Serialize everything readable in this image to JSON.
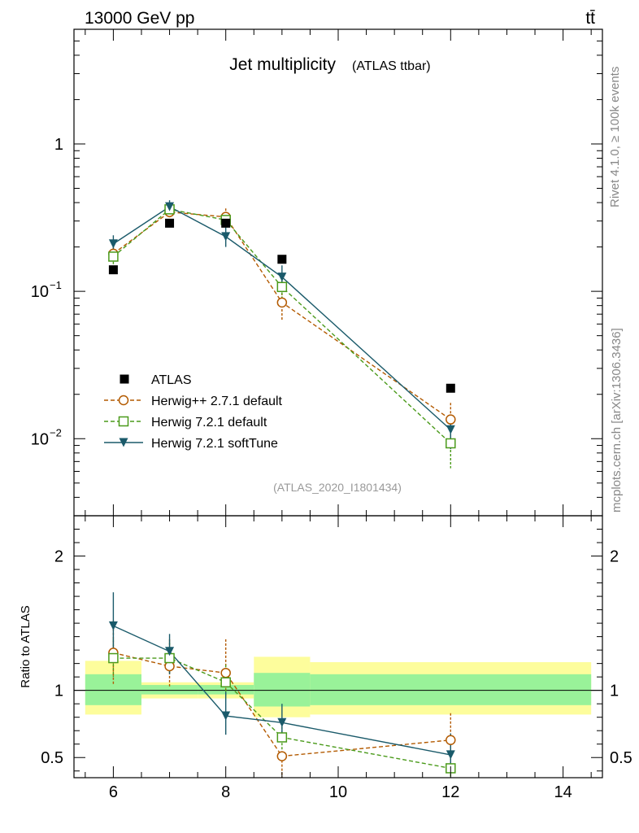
{
  "header": {
    "left": "13000 GeV pp",
    "right": "tt̄"
  },
  "side": {
    "rivet": "Rivet 4.1.0, ≥ 100k events",
    "url": "mcplots.cern.ch [arXiv:1306.3436]"
  },
  "chart_data": [
    {
      "type": "line",
      "panel": "main",
      "title": "Jet multiplicity",
      "subtitle": "(ATLAS ttbar)",
      "annotation": "(ATLAS_2020_I1801434)",
      "yscale": "log",
      "xlim": [
        5.3,
        14.7
      ],
      "ylim": [
        0.003,
        6.0
      ],
      "yticks": [
        {
          "value": 1,
          "label": "1"
        },
        {
          "value": 0.1,
          "label": "10",
          "exp": "−1"
        },
        {
          "value": 0.01,
          "label": "10",
          "exp": "−2"
        }
      ],
      "legend_position": "bottom-left",
      "series": [
        {
          "name": "ATLAS",
          "style": "data",
          "color": "#000000",
          "marker": "square-filled",
          "x": [
            6,
            7,
            8,
            9,
            12
          ],
          "y": [
            0.14,
            0.29,
            0.29,
            0.165,
            0.022
          ]
        },
        {
          "name": "Herwig++ 2.7.1 default",
          "style": "dashed",
          "color": "#b35a00",
          "marker": "circle-open",
          "x": [
            6,
            7,
            8,
            9,
            12
          ],
          "y": [
            0.18,
            0.345,
            0.32,
            0.084,
            0.0135
          ],
          "err": [
            0.02,
            0.03,
            0.045,
            0.02,
            0.004
          ]
        },
        {
          "name": "Herwig 7.2.1 default",
          "style": "dashed",
          "color": "#4a9a1a",
          "marker": "square-open",
          "x": [
            6,
            7,
            8,
            9,
            12
          ],
          "y": [
            0.172,
            0.36,
            0.305,
            0.107,
            0.0093
          ],
          "err": [
            0.02,
            0.03,
            0.035,
            0.02,
            0.003
          ]
        },
        {
          "name": "Herwig 7.2.1 softTune",
          "style": "solid",
          "color": "#1a5a6a",
          "marker": "triangle-down-filled",
          "x": [
            6,
            7,
            8,
            9,
            12
          ],
          "y": [
            0.21,
            0.375,
            0.235,
            0.125,
            0.0115
          ],
          "err": [
            0.03,
            0.04,
            0.035,
            0.025,
            0.003
          ]
        }
      ]
    },
    {
      "type": "line",
      "panel": "ratio",
      "ylabel": "Ratio to ATLAS",
      "xlim": [
        5.3,
        14.7
      ],
      "ylim": [
        0.35,
        2.3
      ],
      "xticks": [
        6,
        8,
        10,
        12,
        14
      ],
      "yticks": [
        {
          "value": 0.5,
          "label": "0.5"
        },
        {
          "value": 1,
          "label": "1"
        },
        {
          "value": 2,
          "label": "2"
        }
      ],
      "bands": [
        {
          "x0": 5.5,
          "x1": 6.5,
          "inner": [
            0.89,
            1.12
          ],
          "outer": [
            0.82,
            1.22
          ]
        },
        {
          "x0": 6.5,
          "x1": 7.5,
          "inner": [
            0.97,
            1.04
          ],
          "outer": [
            0.94,
            1.06
          ]
        },
        {
          "x0": 7.5,
          "x1": 8.5,
          "inner": [
            0.97,
            1.04
          ],
          "outer": [
            0.94,
            1.06
          ]
        },
        {
          "x0": 8.5,
          "x1": 9.5,
          "inner": [
            0.88,
            1.13
          ],
          "outer": [
            0.8,
            1.25
          ]
        },
        {
          "x0": 9.5,
          "x1": 14.5,
          "inner": [
            0.89,
            1.12
          ],
          "outer": [
            0.82,
            1.21
          ]
        }
      ],
      "band_colors": {
        "inner": "#99f299",
        "outer": "#fdfd9c"
      },
      "series": [
        {
          "name": "Herwig++ 2.7.1 default",
          "style": "dashed",
          "color": "#b35a00",
          "marker": "circle-open",
          "x": [
            6,
            7,
            8,
            9,
            12
          ],
          "y": [
            1.28,
            1.18,
            1.13,
            0.51,
            0.63
          ],
          "lo": [
            1.04,
            1.03,
            0.98,
            0.2,
            0.46
          ],
          "hi": [
            1.52,
            1.38,
            1.38,
            0.36,
            0.83
          ]
        },
        {
          "name": "Herwig 7.2.1 default",
          "style": "dashed",
          "color": "#4a9a1a",
          "marker": "square-open",
          "x": [
            6,
            7,
            8,
            9,
            12
          ],
          "y": [
            1.24,
            1.24,
            1.06,
            0.65,
            0.42
          ],
          "lo": [
            1.1,
            1.12,
            0.96,
            0.55,
            0.32
          ],
          "hi": [
            1.38,
            1.36,
            1.19,
            0.76,
            0.56
          ]
        },
        {
          "name": "Herwig 7.2.1 softTune",
          "style": "solid",
          "color": "#1a5a6a",
          "marker": "triangle-down-filled",
          "x": [
            6,
            7,
            8,
            9,
            12
          ],
          "y": [
            1.48,
            1.29,
            0.81,
            0.76,
            0.52
          ],
          "lo": [
            1.28,
            1.12,
            0.67,
            0.62,
            0.4
          ],
          "hi": [
            1.73,
            1.42,
            0.99,
            0.9,
            0.68
          ]
        }
      ]
    }
  ]
}
